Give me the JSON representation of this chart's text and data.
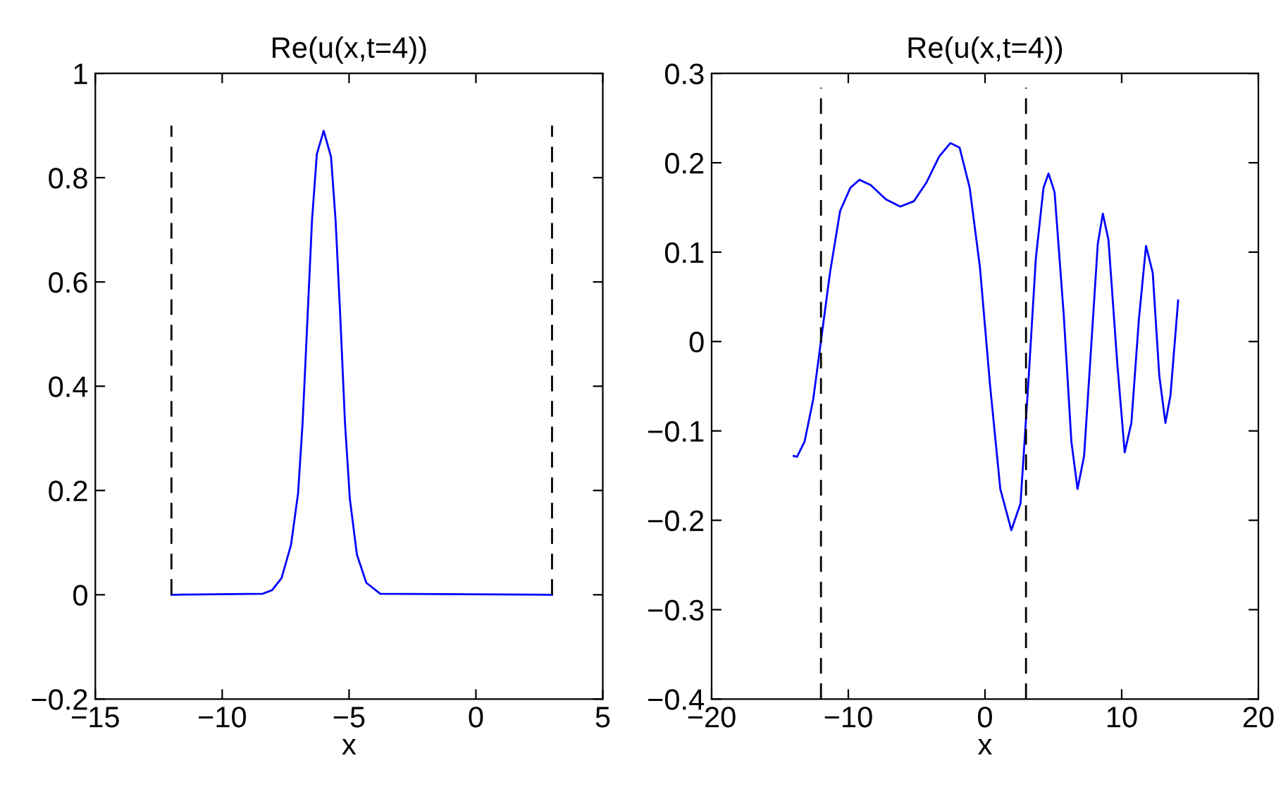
{
  "chart_data": [
    {
      "type": "line",
      "title": "Re(u(x,t=4))",
      "xlabel": "x",
      "xlim": [
        -15,
        5
      ],
      "xticks": [
        -15,
        -10,
        -5,
        0,
        5
      ],
      "ylim": [
        -0.2,
        1
      ],
      "yticks": [
        -0.2,
        0,
        0.2,
        0.4,
        0.6,
        0.8,
        1
      ],
      "grid": false,
      "legend": false,
      "series": [
        {
          "color": "#0000ff",
          "line_style": "solid",
          "x": [
            -12,
            -8.4,
            -8.03,
            -7.66,
            -7.29,
            -7.01,
            -6.83,
            -6.64,
            -6.46,
            -6.27,
            -6,
            -5.71,
            -5.53,
            -5.34,
            -5.16,
            -4.97,
            -4.69,
            -4.32,
            -3.77,
            3
          ],
          "values": [
            0,
            0.002,
            0.009,
            0.032,
            0.095,
            0.194,
            0.33,
            0.528,
            0.718,
            0.845,
            0.89,
            0.84,
            0.718,
            0.528,
            0.33,
            0.185,
            0.077,
            0.023,
            0.002,
            0
          ]
        },
        {
          "color": "#000000",
          "line_style": "dashed",
          "x": [
            -12,
            -12
          ],
          "values": [
            0,
            0.9
          ]
        },
        {
          "color": "#000000",
          "line_style": "dashed",
          "x": [
            3,
            3
          ],
          "values": [
            0,
            0.9
          ]
        }
      ]
    },
    {
      "type": "line",
      "title": "Re(u(x,t=4))",
      "xlabel": "x",
      "xlim": [
        -20,
        20
      ],
      "xticks": [
        -20,
        -10,
        0,
        10,
        20
      ],
      "ylim": [
        -0.4,
        0.3
      ],
      "yticks": [
        -0.4,
        -0.3,
        -0.2,
        -0.1,
        0,
        0.1,
        0.2,
        0.3
      ],
      "grid": false,
      "legend": false,
      "series": [
        {
          "color": "#0000ff",
          "line_style": "solid",
          "x": [
            -14.0,
            -13.75,
            -13.2,
            -12.57,
            -11.97,
            -11.34,
            -10.6,
            -9.85,
            -9.18,
            -8.36,
            -7.25,
            -6.2,
            -5.2,
            -4.28,
            -3.35,
            -2.53,
            -1.86,
            -1.12,
            -0.37,
            0.37,
            1.12,
            1.93,
            2.6,
            3.16,
            3.72,
            4.28,
            4.65,
            5.09,
            5.76,
            6.32,
            6.77,
            7.25,
            7.81,
            8.25,
            8.62,
            9.03,
            9.67,
            10.22,
            10.71,
            11.26,
            11.78,
            12.27,
            12.75,
            13.2,
            13.57,
            14.13
          ],
          "values": [
            -0.128,
            -0.129,
            -0.112,
            -0.065,
            0.004,
            0.077,
            0.146,
            0.172,
            0.181,
            0.175,
            0.159,
            0.151,
            0.157,
            0.178,
            0.207,
            0.222,
            0.217,
            0.172,
            0.083,
            -0.049,
            -0.165,
            -0.211,
            -0.181,
            -0.049,
            0.093,
            0.172,
            0.188,
            0.167,
            0.03,
            -0.112,
            -0.165,
            -0.128,
            0.004,
            0.109,
            0.143,
            0.114,
            -0.023,
            -0.124,
            -0.091,
            0.025,
            0.107,
            0.077,
            -0.038,
            -0.091,
            -0.06,
            0.046
          ]
        },
        {
          "color": "#000000",
          "line_style": "dashed",
          "x": [
            -12,
            -12
          ],
          "values": [
            -0.4,
            0.284
          ]
        },
        {
          "color": "#000000",
          "line_style": "dashed",
          "x": [
            3,
            3
          ],
          "values": [
            -0.4,
            0.284
          ]
        }
      ]
    }
  ]
}
